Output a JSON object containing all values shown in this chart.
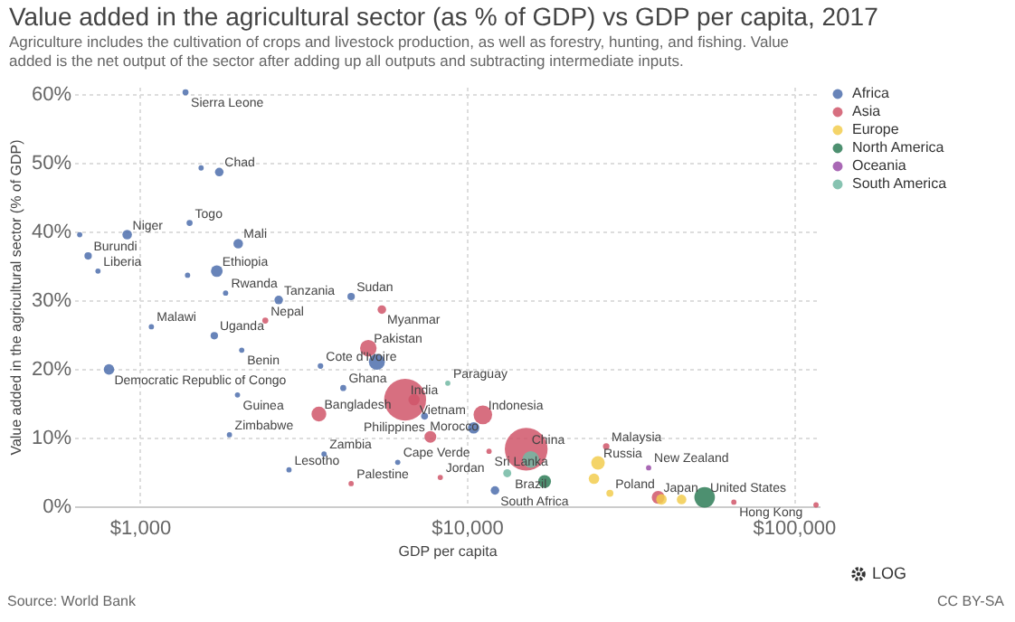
{
  "chart_data": {
    "type": "bubble",
    "title": "Value added in the agricultural sector (as % of GDP) vs GDP per capita, 2017",
    "subtitle": "Agriculture includes the cultivation of crops and livestock production, as well as forestry, hunting, and fishing. Value added is the net output of the sector after adding up all outputs and subtracting intermediate inputs.",
    "xlabel": "GDP per capita",
    "ylabel": "Value added in the agricultural sector (% of GDP)",
    "log": "x",
    "grid": true,
    "legend": "right",
    "marker": "circle",
    "xlim": [
      630,
      120000
    ],
    "ylim": [
      0,
      61
    ],
    "xticks": [
      {
        "value": 1000,
        "label": "$1,000"
      },
      {
        "value": 10000,
        "label": "$10,000"
      },
      {
        "value": 100000,
        "label": "$100,000"
      }
    ],
    "yticks": [
      {
        "value": 0,
        "label": "0%"
      },
      {
        "value": 10,
        "label": "10%"
      },
      {
        "value": 20,
        "label": "20%"
      },
      {
        "value": 30,
        "label": "30%"
      },
      {
        "value": 40,
        "label": "40%"
      },
      {
        "value": 50,
        "label": "50%"
      },
      {
        "value": 60,
        "label": "60%"
      }
    ],
    "series": [
      {
        "name": "Africa",
        "color": "#4e6fad",
        "x": [
          1380,
          1750,
          1420,
          915,
          695,
          745,
          2000,
          1720,
          1830,
          2660,
          4430,
          1085,
          1690,
          2050,
          3570,
          805,
          4190,
          1990,
          7430,
          1880,
          3660,
          2860,
          6150,
          12200,
          5310,
          655,
          1540,
          1400,
          10500
        ],
        "values": [
          60.2,
          48.6,
          41.2,
          39.5,
          36.4,
          34.2,
          38.2,
          34.2,
          31.0,
          30.0,
          30.5,
          26.1,
          24.8,
          22.7,
          20.4,
          19.9,
          17.2,
          16.2,
          13.1,
          10.4,
          7.6,
          5.3,
          6.4,
          2.3,
          21.0,
          39.5,
          49.2,
          33.6,
          11.4
        ],
        "sizes": [
          0.02,
          0.04,
          0.02,
          0.05,
          0.03,
          0.015,
          0.05,
          0.075,
          0.015,
          0.04,
          0.03,
          0.015,
          0.03,
          0.015,
          0.017,
          0.06,
          0.02,
          0.015,
          0.026,
          0.015,
          0.015,
          0.015,
          0.015,
          0.04,
          0.14,
          0.015,
          0.015,
          0.015,
          0.07
        ]
      },
      {
        "name": "Asia",
        "color": "#d0566a",
        "x": [
          6480,
          6900,
          5000,
          2420,
          5500,
          3530,
          11200,
          7740,
          8300,
          4430,
          15200,
          11700,
          26700,
          38500,
          65600,
          117000
        ],
        "values": [
          15.5,
          15.5,
          23.0,
          27.0,
          28.6,
          13.4,
          13.3,
          10.1,
          4.2,
          3.3,
          8.3,
          8.0,
          8.7,
          1.3,
          0.6,
          0.2
        ],
        "sizes": [
          0.96,
          0.07,
          0.15,
          0.02,
          0.04,
          0.12,
          0.19,
          0.075,
          0.015,
          0.015,
          1,
          0.015,
          0.023,
          0.09,
          0.015,
          0.015
        ]
      },
      {
        "name": "Europe",
        "color": "#f2cd4f",
        "x": [
          25200,
          27400,
          24500,
          39400,
          45400
        ],
        "values": [
          6.3,
          1.9,
          4.0,
          1.0,
          1.0
        ],
        "sizes": [
          0.1,
          0.027,
          0.06,
          0.06,
          0.05
        ]
      },
      {
        "name": "North America",
        "color": "#2e7d57",
        "x": [
          53400,
          17300
        ],
        "values": [
          1.3,
          3.6
        ],
        "sizes": [
          0.23,
          0.09
        ]
      },
      {
        "name": "Oceania",
        "color": "#9a4ea8",
        "x": [
          36000
        ],
        "values": [
          5.6
        ],
        "sizes": [
          0.015
        ]
      },
      {
        "name": "South America",
        "color": "#72b9a3",
        "x": [
          8750,
          15700,
          13300
        ],
        "values": [
          17.9,
          6.8,
          4.8
        ],
        "sizes": [
          0.015,
          0.15,
          0.035
        ]
      }
    ],
    "annotations": [
      {
        "text": "Sierra Leone",
        "x": 1380,
        "y": 60.2
      },
      {
        "text": "Chad",
        "x": 1750,
        "y": 48.6
      },
      {
        "text": "Togo",
        "x": 1420,
        "y": 41.2
      },
      {
        "text": "Niger",
        "x": 915,
        "y": 39.5
      },
      {
        "text": "Burundi",
        "x": 695,
        "y": 36.4
      },
      {
        "text": "Liberia",
        "x": 745,
        "y": 34.2
      },
      {
        "text": "Mali",
        "x": 2000,
        "y": 38.2
      },
      {
        "text": "Ethiopia",
        "x": 1720,
        "y": 34.2
      },
      {
        "text": "Rwanda",
        "x": 1830,
        "y": 31.0
      },
      {
        "text": "Tanzania",
        "x": 2660,
        "y": 30.0
      },
      {
        "text": "Sudan",
        "x": 4430,
        "y": 30.5
      },
      {
        "text": "Malawi",
        "x": 1085,
        "y": 26.1
      },
      {
        "text": "Uganda",
        "x": 1690,
        "y": 24.8
      },
      {
        "text": "Nepal",
        "x": 2420,
        "y": 27.0
      },
      {
        "text": "Myanmar",
        "x": 5500,
        "y": 28.6
      },
      {
        "text": "Pakistan",
        "x": 5000,
        "y": 23.0
      },
      {
        "text": "Benin",
        "x": 2050,
        "y": 22.7
      },
      {
        "text": "Cote d'Ivoire",
        "x": 3570,
        "y": 20.4
      },
      {
        "text": "Democratic Republic of Congo",
        "x": 805,
        "y": 19.9
      },
      {
        "text": "Ghana",
        "x": 4190,
        "y": 17.2
      },
      {
        "text": "Guinea",
        "x": 1990,
        "y": 16.2
      },
      {
        "text": "India",
        "x": 6480,
        "y": 15.5
      },
      {
        "text": "Vietnam",
        "x": 6900,
        "y": 15.5
      },
      {
        "text": "Bangladesh",
        "x": 3530,
        "y": 13.4
      },
      {
        "text": "Morocco",
        "x": 7430,
        "y": 13.1
      },
      {
        "text": "Paraguay",
        "x": 8750,
        "y": 17.9
      },
      {
        "text": "Indonesia",
        "x": 11200,
        "y": 13.3
      },
      {
        "text": "Philippines",
        "x": 7740,
        "y": 10.1
      },
      {
        "text": "China",
        "x": 15200,
        "y": 8.3
      },
      {
        "text": "Zimbabwe",
        "x": 1880,
        "y": 10.4
      },
      {
        "text": "Zambia",
        "x": 3660,
        "y": 7.6
      },
      {
        "text": "Lesotho",
        "x": 2860,
        "y": 5.3
      },
      {
        "text": "Cape Verde",
        "x": 6150,
        "y": 6.4
      },
      {
        "text": "Jordan",
        "x": 8300,
        "y": 4.2
      },
      {
        "text": "Palestine",
        "x": 4430,
        "y": 3.3
      },
      {
        "text": "Sri Lanka",
        "x": 11700,
        "y": 8.0
      },
      {
        "text": "Brazil",
        "x": 15700,
        "y": 6.8
      },
      {
        "text": "South Africa",
        "x": 12200,
        "y": 2.3
      },
      {
        "text": "Malaysia",
        "x": 26700,
        "y": 8.7
      },
      {
        "text": "Russia",
        "x": 25200,
        "y": 6.3
      },
      {
        "text": "New Zealand",
        "x": 36000,
        "y": 5.6
      },
      {
        "text": "Poland",
        "x": 27400,
        "y": 1.9
      },
      {
        "text": "Japan",
        "x": 38500,
        "y": 1.3
      },
      {
        "text": "United States",
        "x": 53400,
        "y": 1.3
      },
      {
        "text": "Hong Kong",
        "x": 65600,
        "y": 0.6
      },
      "Source: World Bank",
      "CC BY-SA",
      "LOG"
    ]
  }
}
